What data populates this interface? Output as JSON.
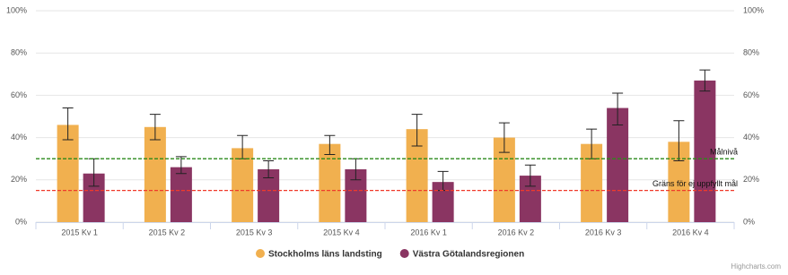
{
  "chart_data": {
    "type": "bar",
    "categories": [
      "2015 Kv 1",
      "2015 Kv 2",
      "2015 Kv 3",
      "2015 Kv 4",
      "2016 Kv 1",
      "2016 Kv 2",
      "2016 Kv 3",
      "2016 Kv 4"
    ],
    "series": [
      {
        "name": "Stockholms läns landsting",
        "color": "#f1b04f",
        "values": [
          46,
          45,
          35,
          37,
          44,
          40,
          37,
          38
        ],
        "error_low": [
          39,
          39,
          30,
          32,
          36,
          33,
          30,
          29
        ],
        "error_high": [
          54,
          51,
          41,
          41,
          51,
          47,
          44,
          48
        ]
      },
      {
        "name": "Västra Götalandsregionen",
        "color": "#8a3562",
        "values": [
          23,
          26,
          25,
          25,
          19,
          22,
          54,
          67
        ],
        "error_low": [
          17,
          23,
          21,
          20,
          15,
          17,
          46,
          62
        ],
        "error_high": [
          30,
          31,
          29,
          30,
          24,
          27,
          61,
          72
        ]
      }
    ],
    "plot_lines": [
      {
        "label": "Målnivå",
        "value": 30,
        "color": "#2a8a1a"
      },
      {
        "label": "Gräns för ej uppfyllt mål",
        "value": 15,
        "color": "#f03a2a"
      }
    ],
    "ylim": [
      0,
      100
    ],
    "yticks": [
      {
        "value": 0,
        "label": "0%"
      },
      {
        "value": 20,
        "label": "20%"
      },
      {
        "value": 40,
        "label": "40%"
      },
      {
        "value": 60,
        "label": "60%"
      },
      {
        "value": 80,
        "label": "80%"
      },
      {
        "value": 100,
        "label": "100%"
      }
    ],
    "y2lim": [
      0,
      100
    ],
    "y2ticks": [
      {
        "value": 0,
        "label": "0%"
      },
      {
        "value": 20,
        "label": "20%"
      },
      {
        "value": 40,
        "label": "40%"
      },
      {
        "value": 60,
        "label": "60%"
      },
      {
        "value": 80,
        "label": "80%"
      },
      {
        "value": 100,
        "label": "100%"
      }
    ],
    "grid": true,
    "legend": "bottom",
    "credits": "Highcharts.com"
  }
}
